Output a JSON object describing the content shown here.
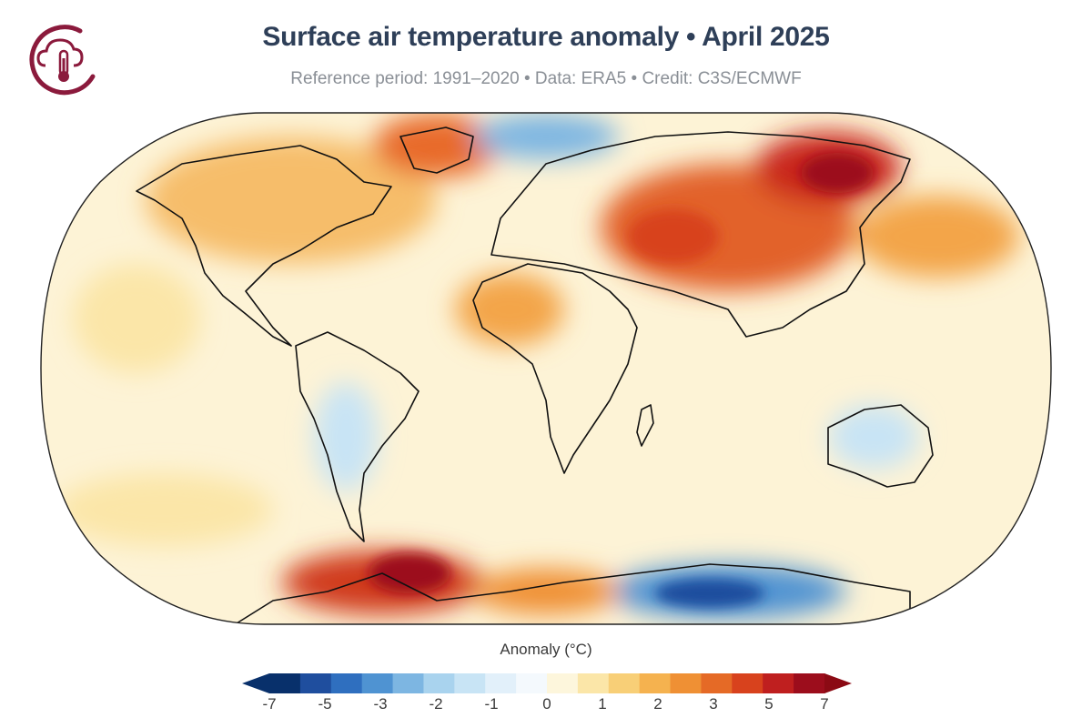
{
  "header": {
    "title": "Surface air temperature anomaly • April 2025",
    "subtitle": "Reference period: 1991–2020 • Data: ERA5 • Credit: C3S/ECMWF"
  },
  "logo": {
    "icon": "cloud-thermometer-icon",
    "color": "#8b1a3c"
  },
  "legend": {
    "title": "Anomaly (°C)",
    "bins": [
      {
        "color": "#08306b"
      },
      {
        "color": "#1f4e9e"
      },
      {
        "color": "#2f6fbf"
      },
      {
        "color": "#4f93d2"
      },
      {
        "color": "#7db6e2"
      },
      {
        "color": "#a9d3ee"
      },
      {
        "color": "#c8e4f5"
      },
      {
        "color": "#e2f0fa"
      },
      {
        "color": "#f4f9fd"
      },
      {
        "color": "#fdf6dc"
      },
      {
        "color": "#fbe6a8"
      },
      {
        "color": "#f8cf77"
      },
      {
        "color": "#f5b24f"
      },
      {
        "color": "#ef9034"
      },
      {
        "color": "#e56a26"
      },
      {
        "color": "#d8421d"
      },
      {
        "color": "#bf1f1f"
      },
      {
        "color": "#9c0d1c"
      }
    ],
    "end_colors": {
      "low": "#08306b",
      "high": "#8b0a14"
    },
    "ticks": [
      {
        "label": "-7",
        "pos": 0
      },
      {
        "label": "-5",
        "pos": 2
      },
      {
        "label": "-3",
        "pos": 4
      },
      {
        "label": "-2",
        "pos": 6
      },
      {
        "label": "-1",
        "pos": 8
      },
      {
        "label": "0",
        "pos": 10
      },
      {
        "label": "1",
        "pos": 12
      },
      {
        "label": "2",
        "pos": 14
      },
      {
        "label": "3",
        "pos": 16
      },
      {
        "label": "5",
        "pos": 18
      },
      {
        "label": "7",
        "pos": 20
      }
    ]
  },
  "map_anomalies": {
    "base_color": "#fdf3d6",
    "regions": [
      {
        "name": "Northern Canada",
        "level": 2
      },
      {
        "name": "Greenland",
        "level": 3
      },
      {
        "name": "Arctic Ocean near Greenland",
        "level": -2
      },
      {
        "name": "Central Asia",
        "level": 4
      },
      {
        "name": "Siberia",
        "level": 5
      },
      {
        "name": "Northwest Pacific",
        "level": 2
      },
      {
        "name": "North Africa",
        "level": 2
      },
      {
        "name": "Southern South America",
        "level": -1
      },
      {
        "name": "Australia",
        "level": -1
      },
      {
        "name": "Antarctic Peninsula",
        "level": 5
      },
      {
        "name": "East Antarctica",
        "level": -3
      }
    ]
  }
}
